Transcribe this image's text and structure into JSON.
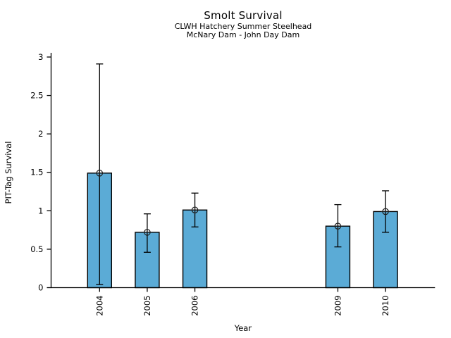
{
  "chart_data": {
    "type": "bar",
    "title": "Smolt Survival",
    "subtitle": [
      "CLWH Hatchery Summer Steelhead",
      "McNary Dam - John Day Dam"
    ],
    "xlabel": "Year",
    "ylabel": "PIT-Tag Survival",
    "categories": [
      "2004",
      "2005",
      "2006",
      "2009",
      "2010"
    ],
    "x_numeric": [
      2004,
      2005,
      2006,
      2009,
      2010
    ],
    "values": [
      1.49,
      0.72,
      1.01,
      0.8,
      0.99
    ],
    "error_low": [
      0.04,
      0.46,
      0.79,
      0.53,
      0.72
    ],
    "error_high": [
      2.91,
      0.96,
      1.23,
      1.08,
      1.26
    ],
    "yticks": [
      "0",
      "0.5",
      "1",
      "1.5",
      "2",
      "2.5",
      "3"
    ],
    "ylim": [
      0,
      3.05
    ],
    "xlim": [
      2003,
      2011
    ],
    "grid": false,
    "legend": "none",
    "bar_color": "#5BABD6",
    "bar_edge_color": "#000000",
    "error_color": "#000000",
    "marker": "circle-plus",
    "marker_color": "#1a1a1a",
    "axis_color": "#000000"
  }
}
